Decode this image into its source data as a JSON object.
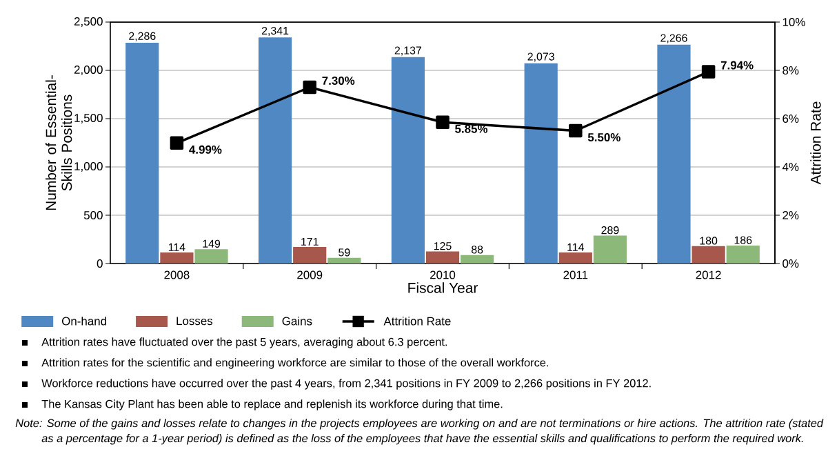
{
  "chart_data": {
    "type": "bar",
    "xlabel": "Fiscal Year",
    "ylabel": "Number of Essential-Skills Positions",
    "y2label": "Attrition Rate",
    "categories": [
      "2008",
      "2009",
      "2010",
      "2011",
      "2012"
    ],
    "series": [
      {
        "name": "On-hand",
        "color": "#5088c4",
        "values": [
          2286,
          2341,
          2137,
          2073,
          2266
        ],
        "value_labels": [
          "2,286",
          "2,341",
          "2,137",
          "2,073",
          "2,266"
        ]
      },
      {
        "name": "Losses",
        "color": "#a8574d",
        "values": [
          114,
          171,
          125,
          114,
          180
        ],
        "value_labels": [
          "114",
          "171",
          "125",
          "114",
          "180"
        ]
      },
      {
        "name": "Gains",
        "color": "#8cb87a",
        "values": [
          149,
          59,
          88,
          289,
          186
        ],
        "value_labels": [
          "149",
          "59",
          "88",
          "289",
          "186"
        ]
      },
      {
        "name": "Attrition Rate",
        "type": "line",
        "axis": "y2",
        "color": "#000000",
        "marker": "square",
        "values": [
          4.99,
          7.3,
          5.85,
          5.5,
          7.94
        ],
        "value_labels": [
          "4.99%",
          "7.30%",
          "5.85%",
          "5.50%",
          "7.94%"
        ]
      }
    ],
    "ylim": [
      0,
      2500
    ],
    "yticks": [
      0,
      500,
      {
        "value": 1000,
        "label": "1,000"
      },
      {
        "value": 1500,
        "label": "1,500"
      },
      {
        "value": 2000,
        "label": "2,000"
      },
      {
        "value": 2500,
        "label": "2,500"
      }
    ],
    "y2lim": [
      0,
      10
    ],
    "y2ticks": [
      {
        "value": 0,
        "label": "0%"
      },
      {
        "value": 2,
        "label": "2%"
      },
      {
        "value": 4,
        "label": "4%"
      },
      {
        "value": 6,
        "label": "6%"
      },
      {
        "value": 8,
        "label": "8%"
      },
      {
        "value": 10,
        "label": "10%"
      }
    ],
    "grid": "y",
    "legend": "bottom",
    "annotations": [
      "Attrition rates have fluctuated over the past 5 years, averaging about 6.3 percent.",
      "Attrition rates for the scientific and engineering workforce are similar to those of the overall workforce.",
      "Workforce reductions have occurred over the past 4 years, from 2,341 positions in FY 2009 to 2,266 positions in FY 2012.",
      "The Kansas City Plant has been able to replace and replenish its workforce during that time.",
      "Note: Some of the gains and losses relate to changes in the projects employees are working on and are not terminations or hire actions. The attrition rate (stated as a percentage for a 1-year period) is defined as the loss of the employees that have the essential skills and qualifications to perform the required work."
    ]
  }
}
